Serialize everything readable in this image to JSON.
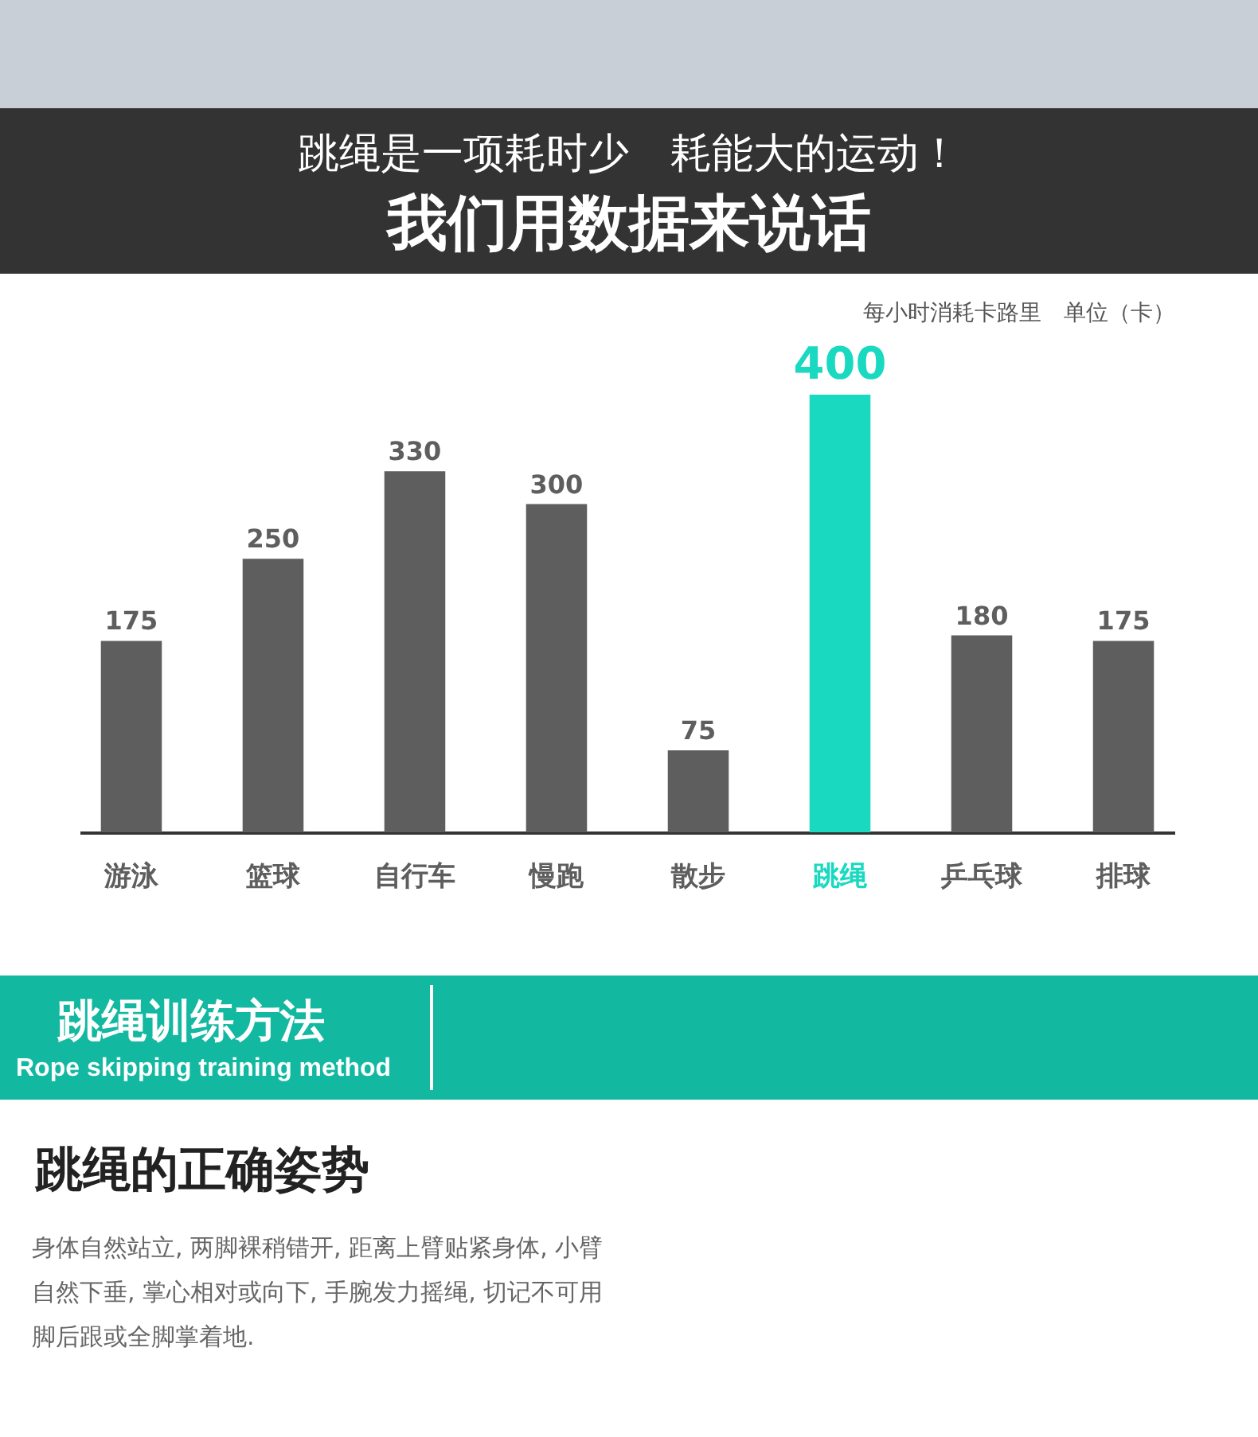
{
  "chart_data": {
    "type": "bar",
    "title": "跳绳是一项耗时少　耗能大的运动！",
    "subtitle": "我们用数据来说话",
    "categories": [
      "游泳",
      "篮球",
      "自行车",
      "慢跑",
      "散步",
      "跳绳",
      "乒乓球",
      "排球"
    ],
    "values": [
      175,
      250,
      330,
      300,
      75,
      400,
      180,
      175
    ],
    "colors": [
      "#5e5e5e",
      "#5e5e5e",
      "#5e5e5e",
      "#5e5e5e",
      "#5e5e5e",
      "#1ad9c1",
      "#5e5e5e",
      "#5e5e5e"
    ],
    "data_labels": true,
    "grid": false,
    "annotations": [
      "每小时消耗卡路里　单位（卡）",
      "跳绳训练方法",
      "Rope skipping training method",
      "跳绳的正确姿势",
      "身体自然站立, 两脚裸稍错开, 距离上臂贴紧身体, 小臂自然下垂, 掌心相对或向下, 手腕发力摇绳, 切记不可用脚后跟或全脚掌着地."
    ]
  }
}
